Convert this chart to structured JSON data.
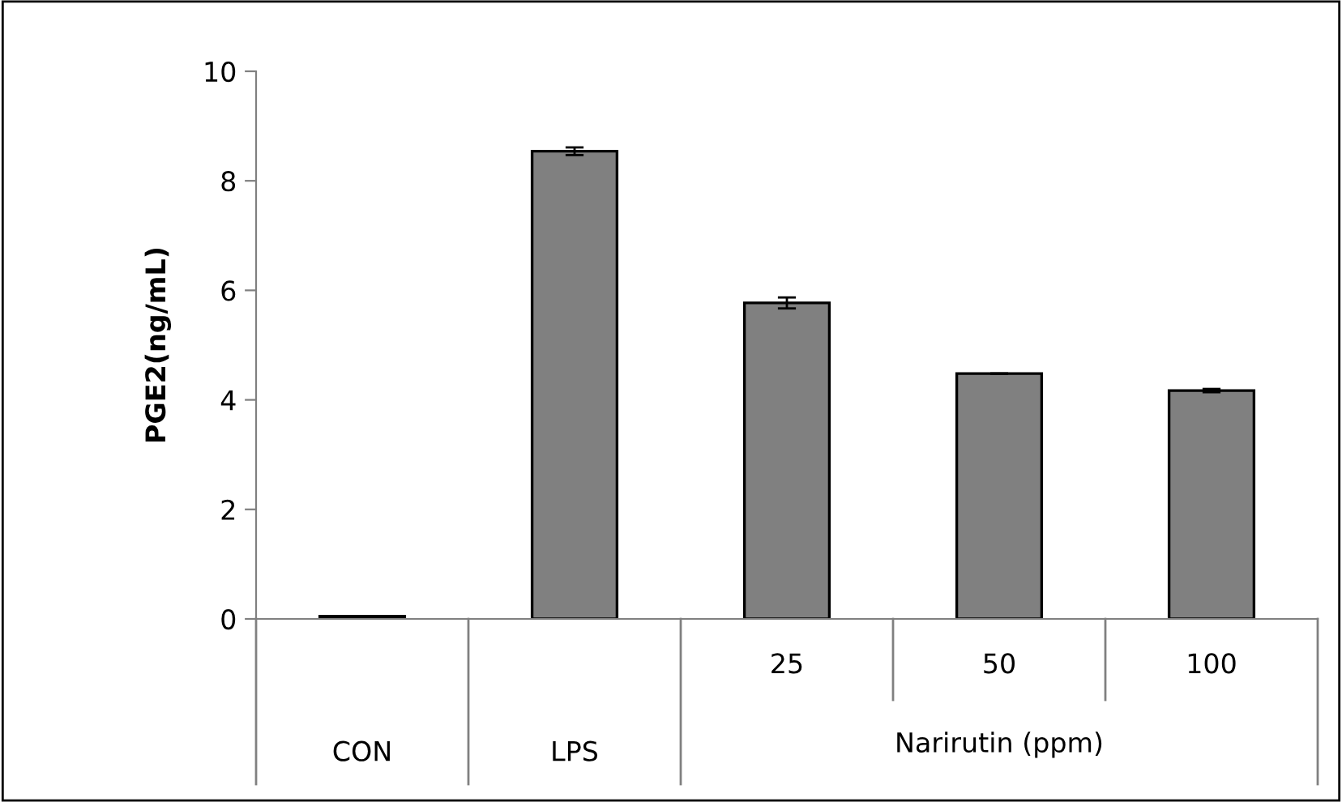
{
  "chart_data": {
    "type": "bar",
    "ylabel": "PGE2(ng/mL)",
    "categories": [
      "CON",
      "LPS",
      "25",
      "50",
      "100"
    ],
    "values": [
      0.05,
      8.54,
      5.77,
      4.48,
      4.17
    ],
    "errors": [
      null,
      0.07,
      0.1,
      null,
      0.03
    ],
    "color": "#808080",
    "ylim": [
      0,
      10
    ],
    "yticks": [
      0,
      2,
      4,
      6,
      8,
      10
    ],
    "annotations": [
      "Narirutin (ppm)"
    ],
    "grid": false
  }
}
